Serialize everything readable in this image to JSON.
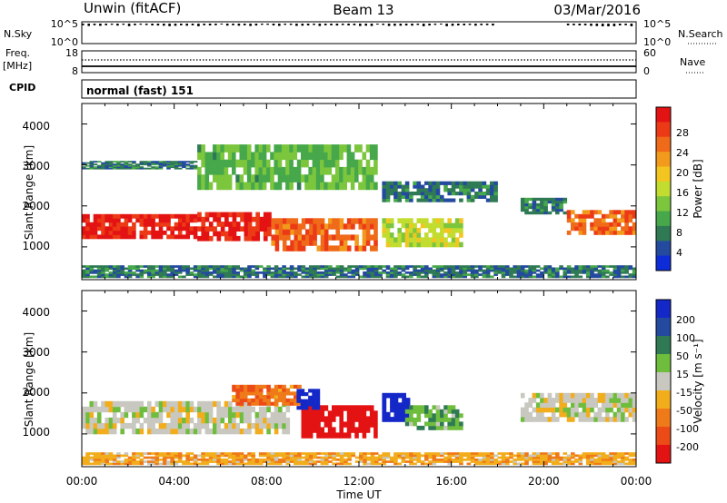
{
  "header": {
    "station": "Unwin (fitACF)",
    "beam": "Beam 13",
    "date": "03/Mar/2016"
  },
  "strip_labels": {
    "nsky": "N.Sky",
    "nsky_top": "10^5",
    "nsky_bottom": "10^0",
    "freq": "Freq.",
    "freq_unit": "[MHz]",
    "freq_top": "18",
    "freq_bottom": "8",
    "nsearch": "N.Search",
    "nsearch_top": "10^5",
    "nsearch_bottom": "10^0",
    "nave": "Nave",
    "nave_top": "60",
    "nave_bottom": "0",
    "cpid": "CPID",
    "cpid_value": "normal (fast) 151"
  },
  "xaxis": {
    "label": "Time UT",
    "ticks": [
      "00:00",
      "04:00",
      "08:00",
      "12:00",
      "16:00",
      "20:00",
      "00:00"
    ]
  },
  "power_panel": {
    "ylabel": "Slant Range [km]",
    "yticks": [
      "1000",
      "2000",
      "3000",
      "4000"
    ],
    "colorbar_label": "Power [dB]",
    "colorbar_ticks": [
      "4",
      "8",
      "12",
      "16",
      "20",
      "24",
      "28"
    ],
    "colors": [
      "#0d2bd6",
      "#244aa0",
      "#2f7a54",
      "#46a84a",
      "#7cc63d",
      "#c2dd2f",
      "#f3c520",
      "#f29a1c",
      "#ef6a19",
      "#ec3a17",
      "#e41313"
    ]
  },
  "velocity_panel": {
    "ylabel": "Slant Range [km]",
    "yticks": [
      "1000",
      "2000",
      "3000",
      "4000"
    ],
    "colorbar_label": "Velocity [m s⁻¹]",
    "colorbar_ticks": [
      "200",
      "100",
      "50",
      "15",
      "-15",
      "-50",
      "-100",
      "-200"
    ],
    "colors": [
      "#1428c8",
      "#244aa0",
      "#2f7a54",
      "#6fbd3d",
      "#c8c8c0",
      "#f2ad1c",
      "#ef7a19",
      "#ec4a17",
      "#e41313"
    ]
  },
  "chart_data": {
    "type": "heatmap",
    "x_range_hours": [
      0,
      24
    ],
    "y_range_km": [
      200,
      4500
    ],
    "panels": [
      {
        "name": "Power",
        "unit": "dB",
        "color_range": [
          2,
          30
        ],
        "regions": [
          {
            "t": [
              0.0,
              5.0
            ],
            "range_km": [
              1200,
              1800
            ],
            "value": 28
          },
          {
            "t": [
              5.0,
              8.2
            ],
            "range_km": [
              1150,
              1850
            ],
            "value": 28
          },
          {
            "t": [
              8.2,
              12.8
            ],
            "range_km": [
              900,
              1700
            ],
            "value": 24
          },
          {
            "t": [
              13.0,
              16.5
            ],
            "range_km": [
              1000,
              1700
            ],
            "value": 16
          },
          {
            "t": [
              13.0,
              18.0
            ],
            "range_km": [
              2100,
              2600
            ],
            "value": 8
          },
          {
            "t": [
              19.0,
              21.0
            ],
            "range_km": [
              1800,
              2200
            ],
            "value": 8
          },
          {
            "t": [
              21.0,
              24.0
            ],
            "range_km": [
              1300,
              1900
            ],
            "value": 24
          },
          {
            "t": [
              0.0,
              5.0
            ],
            "range_km": [
              2900,
              3100
            ],
            "value": 8
          },
          {
            "t": [
              5.0,
              12.8
            ],
            "range_km": [
              2400,
              3500
            ],
            "value": 12
          },
          {
            "t": [
              0.0,
              24.0
            ],
            "range_km": [
              250,
              550
            ],
            "value": 8
          }
        ]
      },
      {
        "name": "Velocity",
        "unit": "m s-1",
        "color_range": [
          -200,
          200
        ],
        "regions": [
          {
            "t": [
              0.0,
              9.0
            ],
            "range_km": [
              1000,
              1800
            ],
            "value": 0
          },
          {
            "t": [
              6.5,
              9.5
            ],
            "range_km": [
              1700,
              2200
            ],
            "value": -100
          },
          {
            "t": [
              9.5,
              12.8
            ],
            "range_km": [
              900,
              1700
            ],
            "value": -200
          },
          {
            "t": [
              9.3,
              10.3
            ],
            "range_km": [
              1600,
              2100
            ],
            "value": 200
          },
          {
            "t": [
              13.0,
              14.2
            ],
            "range_km": [
              1300,
              2000
            ],
            "value": 200
          },
          {
            "t": [
              14.0,
              16.5
            ],
            "range_km": [
              1100,
              1700
            ],
            "value": 50
          },
          {
            "t": [
              19.0,
              24.0
            ],
            "range_km": [
              1300,
              2000
            ],
            "value": 0
          },
          {
            "t": [
              0.0,
              24.0
            ],
            "range_km": [
              250,
              550
            ],
            "value": -50
          }
        ]
      }
    ]
  }
}
